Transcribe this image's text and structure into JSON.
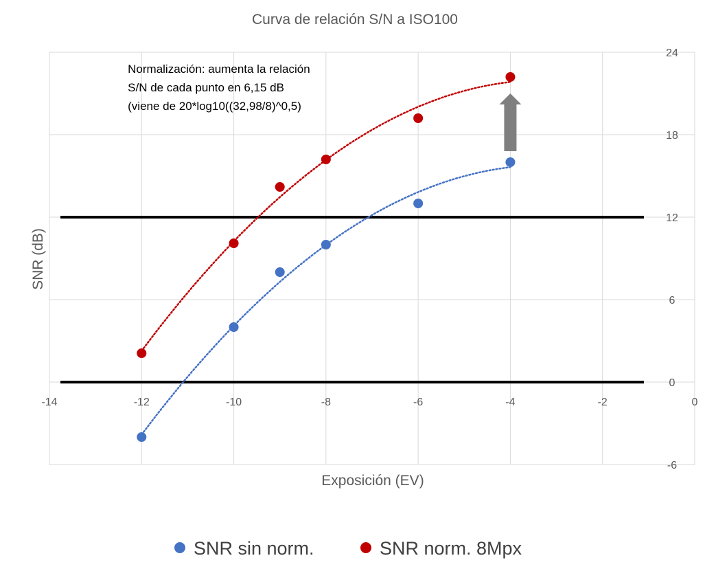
{
  "chart_data": {
    "type": "scatter",
    "title": "Curva de relación S/N a ISO100",
    "xlabel": "Exposición (EV)",
    "ylabel": "SNR (dB)",
    "xlim": [
      -14,
      0
    ],
    "ylim": [
      -6,
      24
    ],
    "x_ticks": [
      -14,
      -12,
      -10,
      -8,
      -6,
      -4,
      -2,
      0
    ],
    "y_ticks": [
      24,
      18,
      12,
      6,
      0,
      -6
    ],
    "x_tick_labels": [
      "-14",
      "-12",
      "-10",
      "-8",
      "-6",
      "-4",
      "-2",
      "0"
    ],
    "y_tick_labels": [
      "24",
      "18",
      "12",
      "6",
      "0",
      "-6"
    ],
    "grid": true,
    "legend_position": "bottom",
    "series": [
      {
        "name": "SNR sin norm.",
        "color": "#4472C4",
        "trendline": "dotted polynomial",
        "x": [
          -12,
          -10,
          -9,
          -8,
          -6,
          -4
        ],
        "y": [
          -4.0,
          4.0,
          8.0,
          10.0,
          13.0,
          16.0
        ]
      },
      {
        "name": "SNR norm. 8Mpx",
        "color": "#C00000",
        "trendline": "dotted polynomial",
        "x": [
          -12,
          -10,
          -9,
          -8,
          -6,
          -4
        ],
        "y": [
          2.1,
          10.1,
          14.2,
          16.2,
          19.2,
          22.2
        ]
      }
    ],
    "reference_lines": [
      {
        "y": 12,
        "color": "#000000"
      },
      {
        "y": 0,
        "color": "#000000"
      }
    ],
    "annotations": [
      {
        "lines": [
          "Normalización: aumenta la relación",
          "S/N de cada punto en 6,15 dB",
          "(viene de 20*log10((32,98/8)^0,5)"
        ],
        "x": -12.3,
        "y": 22.5
      }
    ],
    "arrow": {
      "x": -4,
      "y_from": 16.8,
      "y_to": 21.0,
      "color": "#7F7F7F"
    }
  }
}
